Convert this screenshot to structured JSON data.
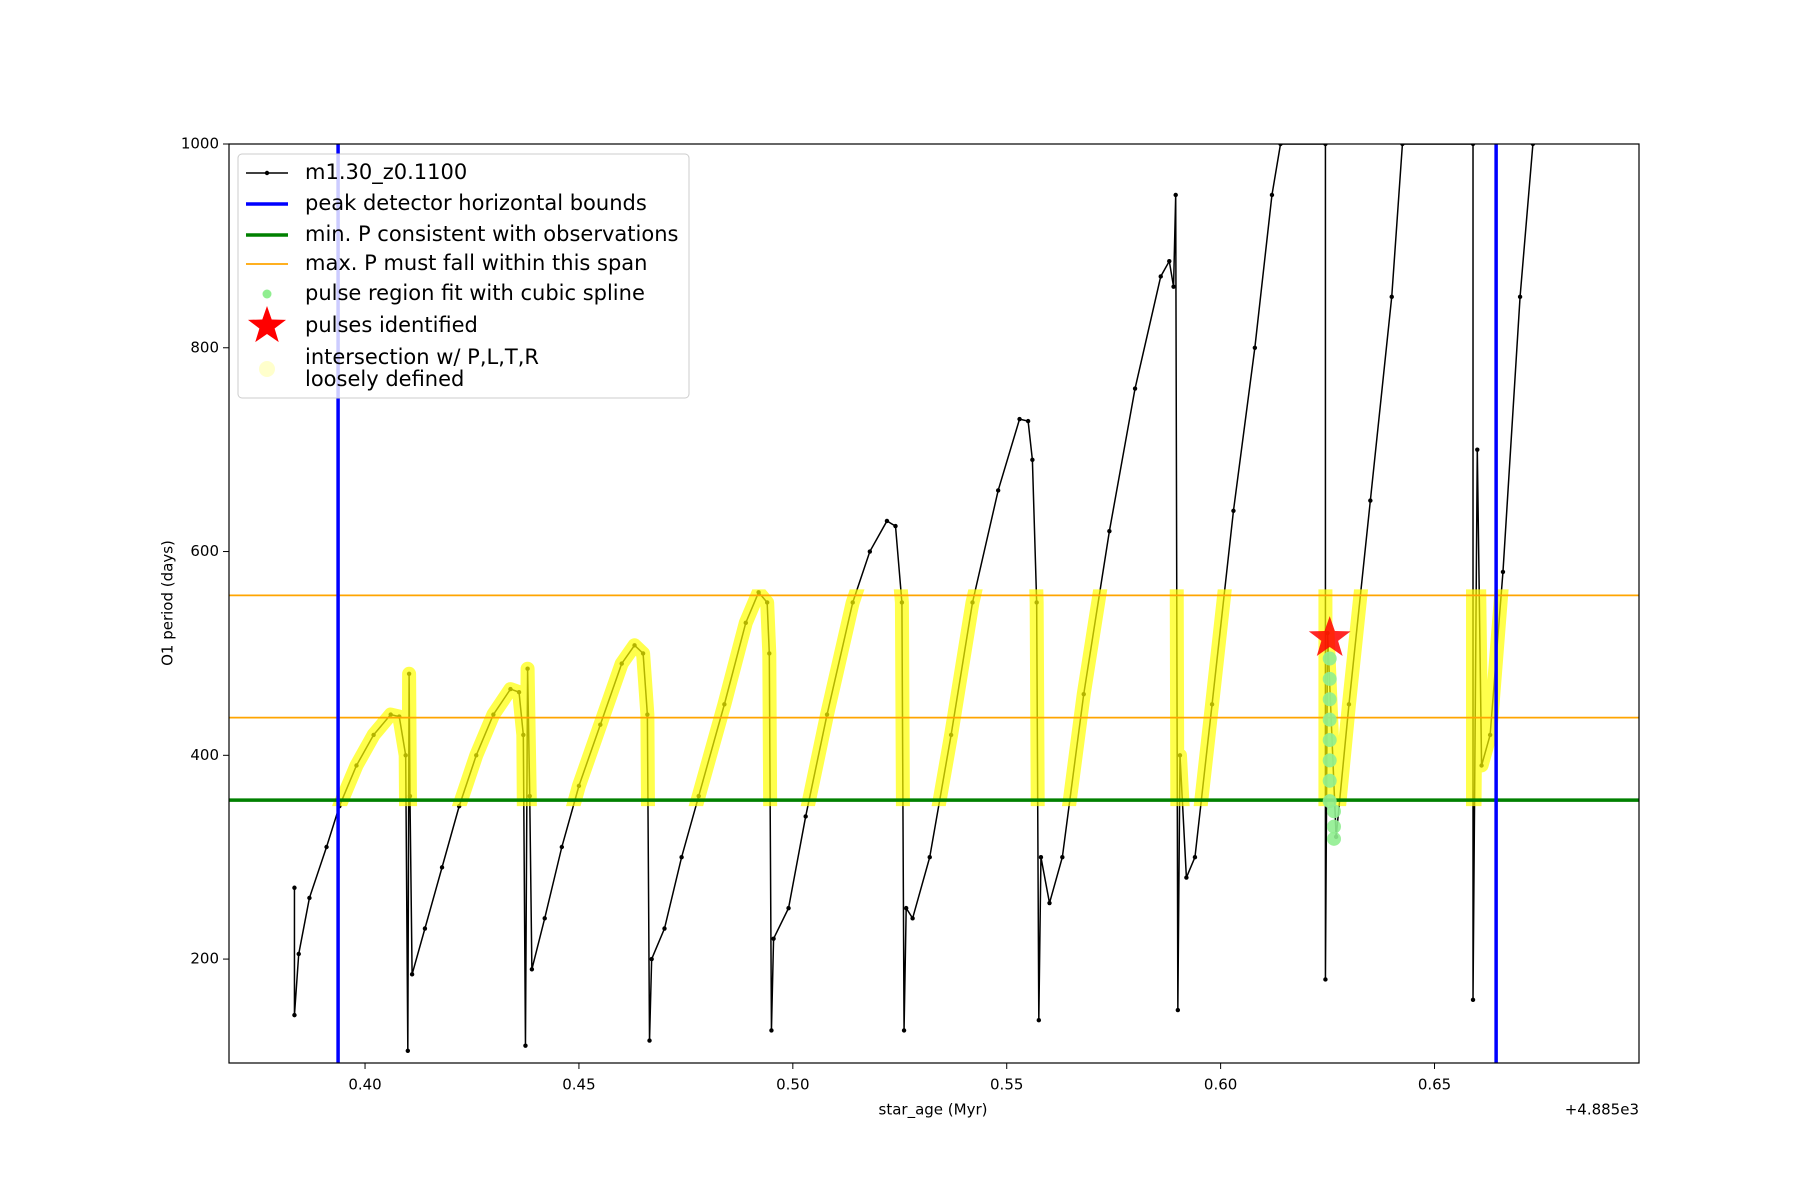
{
  "chart_data": {
    "type": "line",
    "xlabel": "star_age (Myr)",
    "ylabel": "O1 period (days)",
    "x_offset_label": "+4.885e3",
    "xlim": [
      0.3682,
      0.6978
    ],
    "ylim": [
      98,
      1000
    ],
    "xticks": [
      {
        "value": 0.4,
        "label": "0.40"
      },
      {
        "value": 0.45,
        "label": "0.45"
      },
      {
        "value": 0.5,
        "label": "0.50"
      },
      {
        "value": 0.55,
        "label": "0.55"
      },
      {
        "value": 0.6,
        "label": "0.60"
      },
      {
        "value": 0.65,
        "label": "0.65"
      }
    ],
    "yticks": [
      200,
      400,
      600,
      800,
      1000
    ],
    "legend": "upper left",
    "series": [
      {
        "name": "m1.30_z0.1100",
        "color": "#000000",
        "x": [
          0.3835,
          0.3835,
          0.3845,
          0.387,
          0.391,
          0.394,
          0.398,
          0.402,
          0.406,
          0.408,
          0.4095,
          0.41,
          0.4103,
          0.4105,
          0.411,
          0.414,
          0.418,
          0.422,
          0.426,
          0.43,
          0.434,
          0.436,
          0.437,
          0.4375,
          0.438,
          0.4385,
          0.439,
          0.442,
          0.446,
          0.45,
          0.455,
          0.46,
          0.463,
          0.465,
          0.466,
          0.4665,
          0.467,
          0.47,
          0.474,
          0.478,
          0.484,
          0.489,
          0.492,
          0.494,
          0.4945,
          0.495,
          0.4955,
          0.499,
          0.503,
          0.508,
          0.514,
          0.518,
          0.522,
          0.524,
          0.5255,
          0.526,
          0.5265,
          0.528,
          0.532,
          0.537,
          0.542,
          0.548,
          0.553,
          0.555,
          0.556,
          0.557,
          0.5575,
          0.558,
          0.56,
          0.563,
          0.568,
          0.574,
          0.58,
          0.586,
          0.588,
          0.589,
          0.5895,
          0.59,
          0.5905,
          0.592,
          0.594,
          0.598,
          0.603,
          0.608,
          0.612,
          0.614,
          0.6245,
          0.6245,
          0.625,
          0.627,
          0.63,
          0.635,
          0.64,
          0.6425,
          0.659,
          0.659,
          0.66,
          0.661,
          0.663,
          0.666,
          0.67,
          0.673
        ],
        "values": [
          270,
          145,
          205,
          260,
          310,
          350,
          390,
          420,
          440,
          438,
          400,
          110,
          480,
          360,
          185,
          230,
          290,
          350,
          400,
          440,
          465,
          462,
          420,
          115,
          485,
          360,
          190,
          240,
          310,
          370,
          430,
          490,
          508,
          500,
          440,
          120,
          200,
          230,
          300,
          360,
          450,
          530,
          560,
          550,
          500,
          130,
          220,
          250,
          340,
          440,
          550,
          600,
          630,
          625,
          550,
          130,
          250,
          240,
          300,
          420,
          550,
          660,
          730,
          728,
          690,
          550,
          140,
          300,
          255,
          300,
          460,
          620,
          760,
          870,
          885,
          860,
          950,
          150,
          400,
          280,
          300,
          450,
          640,
          800,
          950,
          1000,
          1000,
          180,
          520,
          320,
          450,
          650,
          850,
          1000,
          1000,
          160,
          700,
          390,
          420,
          580,
          850,
          1000
        ]
      },
      {
        "name": "peak detector horizontal bounds",
        "color": "#0000ff",
        "x": [
          0.3937,
          0.6644
        ]
      },
      {
        "name": "min. P consistent with observations",
        "color": "#008000",
        "values": [
          356
        ]
      },
      {
        "name": "max. P must fall within this span",
        "color": "#ffa500",
        "values": [
          437,
          557
        ]
      },
      {
        "name": "pulse region fit with cubic spline",
        "color": "#90ee90",
        "x": [
          0.6255,
          0.6255,
          0.6255,
          0.6255,
          0.6255,
          0.6255,
          0.6255,
          0.6255,
          0.6265,
          0.6265,
          0.6265
        ],
        "values": [
          355,
          375,
          395,
          415,
          435,
          455,
          475,
          495,
          345,
          330,
          318
        ]
      },
      {
        "name": "pulses identified",
        "color": "#ff0000",
        "x": [
          0.6255
        ],
        "values": [
          515
        ]
      },
      {
        "name": "intersection w/ P,L,T,R\nloosely defined",
        "color": "#ffff00"
      }
    ]
  }
}
